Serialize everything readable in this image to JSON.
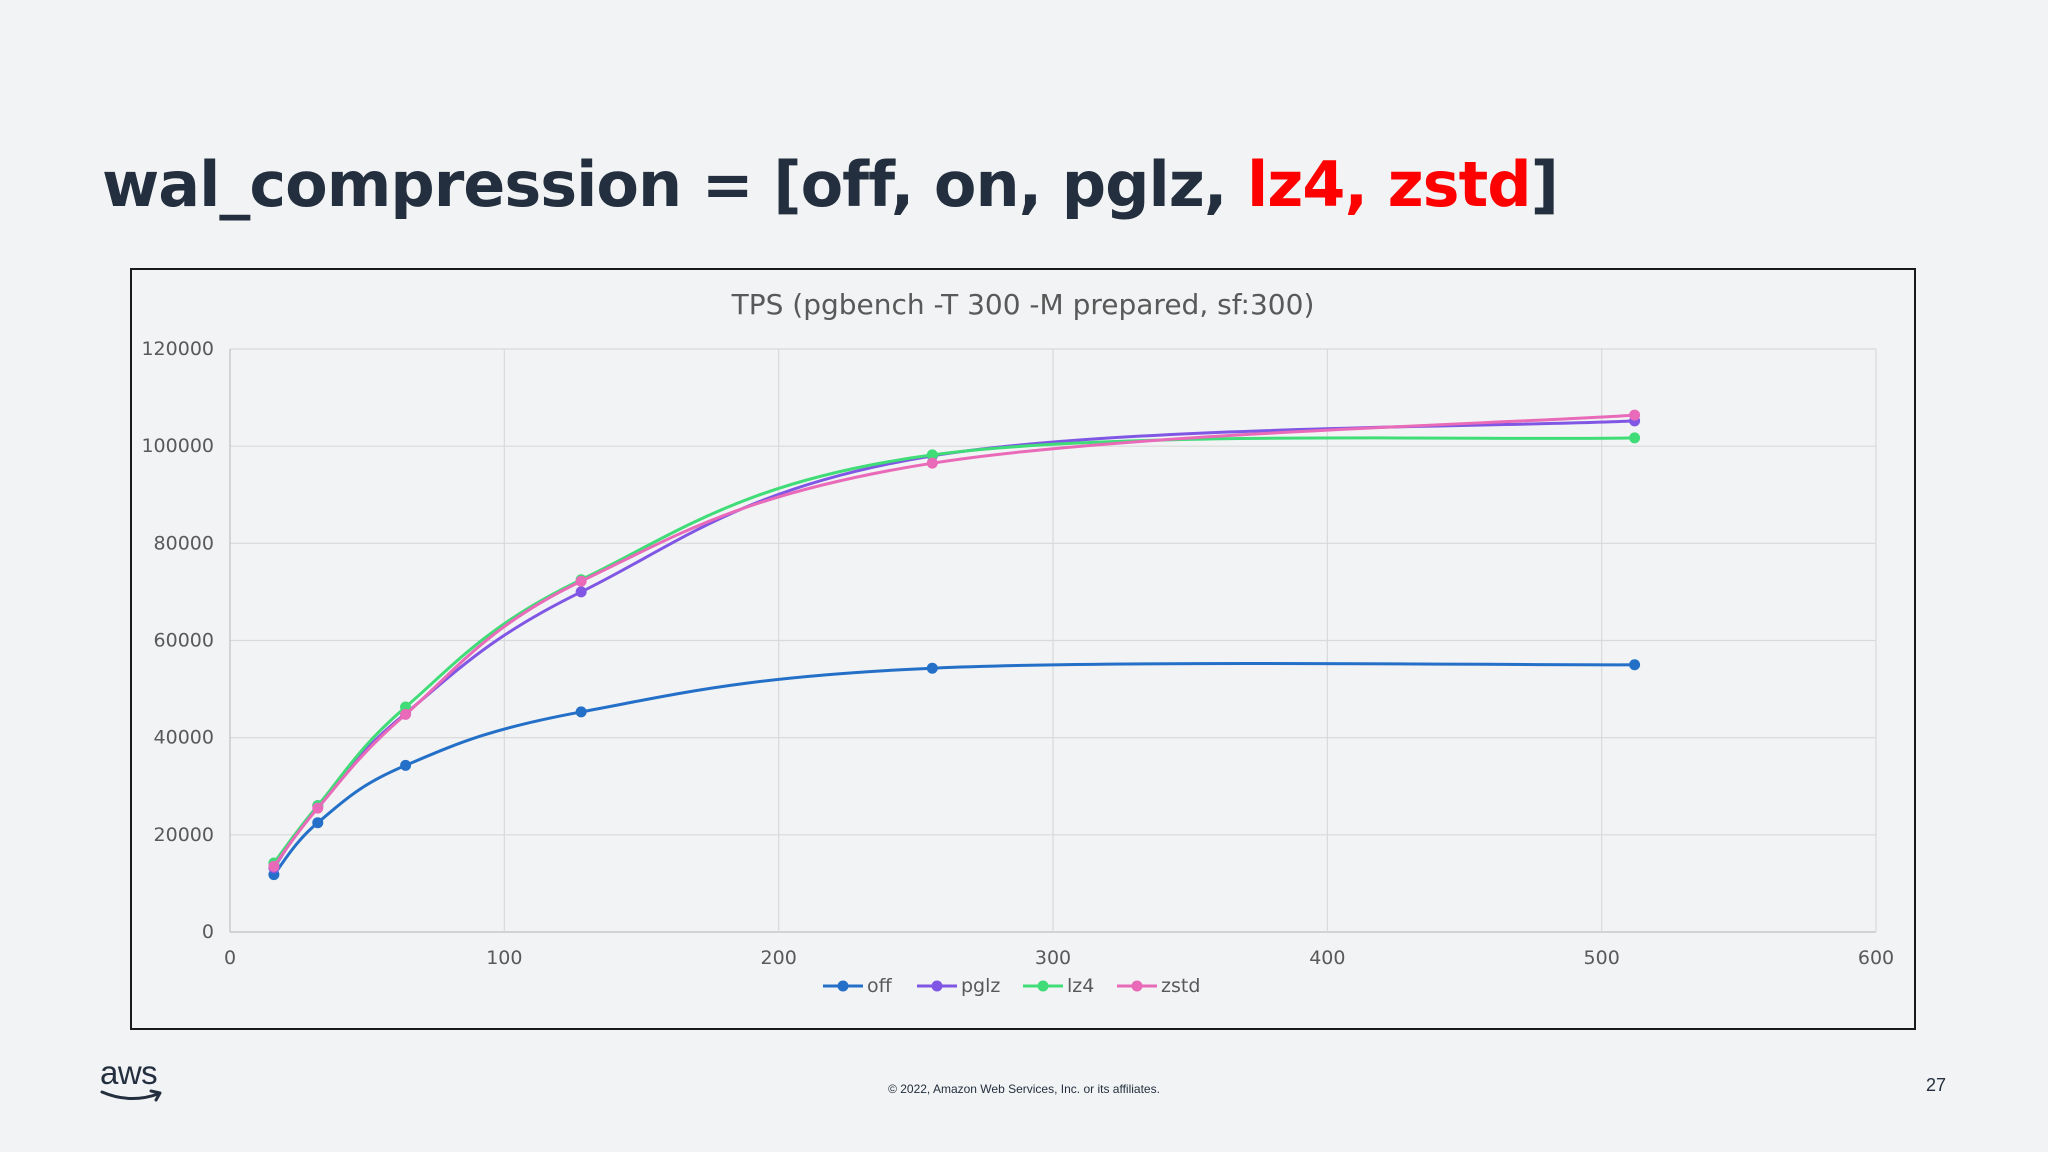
{
  "slide": {
    "title_prefix": "wal_compression = [off, on, pglz, ",
    "title_highlight": "lz4, zstd",
    "title_suffix": "]",
    "footer": "© 2022, Amazon Web Services, Inc. or its affiliates.",
    "page_number": "27",
    "logo_text": "aws"
  },
  "chart_data": {
    "type": "line",
    "title": "TPS (pgbench -T 300 -M prepared, sf:300)",
    "xlabel": "",
    "ylabel": "",
    "xlim": [
      0,
      600
    ],
    "ylim": [
      0,
      120000
    ],
    "x_ticks": [
      0,
      100,
      200,
      300,
      400,
      500,
      600
    ],
    "y_ticks": [
      0,
      20000,
      40000,
      60000,
      80000,
      100000,
      120000
    ],
    "grid": true,
    "legend_position": "bottom",
    "x": [
      16,
      32,
      64,
      128,
      256,
      512
    ],
    "series": [
      {
        "name": "off",
        "color": "#2470c8",
        "values": [
          11800,
          22500,
          34300,
          45300,
          54300,
          55000
        ]
      },
      {
        "name": "pglz",
        "color": "#7f57e4",
        "values": [
          13200,
          26000,
          45000,
          70000,
          98000,
          105200
        ]
      },
      {
        "name": "lz4",
        "color": "#40dc78",
        "values": [
          14200,
          26000,
          46300,
          72500,
          98200,
          101700
        ]
      },
      {
        "name": "zstd",
        "color": "#e86ab8",
        "values": [
          13500,
          25500,
          44800,
          72200,
          96500,
          106400
        ]
      }
    ]
  }
}
